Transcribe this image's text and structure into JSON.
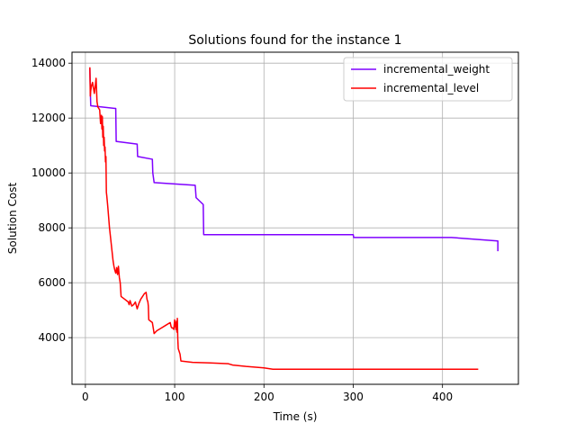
{
  "chart_data": {
    "type": "line",
    "title": "Solutions found for the instance 1",
    "xlabel": "Time (s)",
    "ylabel": "Solution Cost",
    "xlim": [
      -15,
      485
    ],
    "ylim": [
      2300,
      14400
    ],
    "xticks": [
      0,
      100,
      200,
      300,
      400
    ],
    "yticks": [
      4000,
      6000,
      8000,
      10000,
      12000,
      14000
    ],
    "grid": true,
    "legend_position": "top-right",
    "series": [
      {
        "name": "incremental_weight",
        "color": "#7f00ff",
        "x": [
          5,
          5.5,
          6,
          34,
          34.5,
          58,
          58.5,
          75,
          75.5,
          77,
          123,
          124,
          132,
          132.5,
          300,
          300.5,
          410,
          462,
          462
        ],
        "y": [
          13800,
          13000,
          12450,
          12350,
          11150,
          11050,
          10600,
          10500,
          10000,
          9650,
          9550,
          9100,
          8850,
          7750,
          7750,
          7650,
          7650,
          7520,
          7150
        ]
      },
      {
        "name": "incremental_level",
        "color": "#ff0000",
        "x": [
          5,
          5.5,
          6,
          7,
          8,
          9,
          10,
          11,
          12,
          13,
          14,
          15,
          16,
          17,
          18,
          18.5,
          19,
          19.5,
          20,
          20.5,
          21,
          21.5,
          22,
          22.5,
          23,
          23.5,
          24,
          25,
          26,
          27,
          28,
          29,
          30,
          31,
          32,
          33,
          34,
          35,
          36,
          37,
          38,
          39,
          40,
          42,
          44,
          46,
          48,
          49,
          50,
          52,
          54,
          56,
          58,
          60,
          62,
          64,
          66,
          68,
          69,
          70,
          70.5,
          71,
          73,
          75,
          76,
          77,
          80,
          85,
          90,
          95,
          96,
          97,
          98,
          99,
          100,
          100.5,
          101,
          101.5,
          102,
          102.5,
          103,
          103.5,
          104,
          105,
          106,
          107,
          120,
          140,
          160,
          165,
          180,
          200,
          210,
          300,
          400,
          440
        ],
        "y": [
          13850,
          12800,
          13000,
          13200,
          13300,
          13100,
          12900,
          13150,
          13450,
          12600,
          12400,
          12350,
          12300,
          11800,
          12100,
          11600,
          12050,
          11300,
          11700,
          11000,
          11300,
          10800,
          10950,
          10400,
          10600,
          9300,
          9150,
          8800,
          8400,
          8000,
          7700,
          7400,
          7100,
          6800,
          6600,
          6450,
          6350,
          6550,
          6300,
          6600,
          6200,
          6000,
          5500,
          5450,
          5400,
          5350,
          5300,
          5200,
          5350,
          5150,
          5200,
          5300,
          5050,
          5250,
          5400,
          5500,
          5600,
          5650,
          5400,
          5300,
          5150,
          4650,
          4600,
          4550,
          4350,
          4150,
          4250,
          4350,
          4450,
          4550,
          4400,
          4350,
          4350,
          4300,
          4650,
          4400,
          4550,
          4300,
          4600,
          4200,
          4700,
          3950,
          3600,
          3500,
          3400,
          3150,
          3100,
          3080,
          3050,
          3000,
          2950,
          2900,
          2850,
          2850,
          2850,
          2850
        ]
      }
    ]
  }
}
